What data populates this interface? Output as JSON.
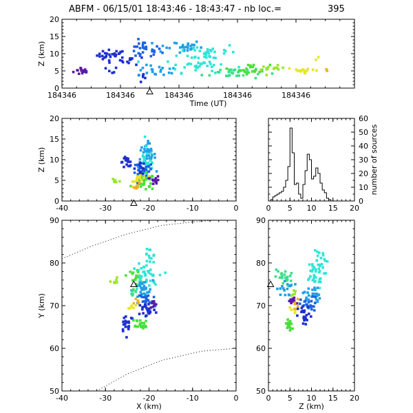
{
  "title": {
    "text": "ABFM - 06/15/01 18:43:46 - 18:43:47 - nb loc.=",
    "count": "395"
  },
  "colors": {
    "palette": [
      "#5a1aa6",
      "#1e2fd0",
      "#1e63e0",
      "#1ea0e6",
      "#2ee6d6",
      "#38e08a",
      "#48e03a",
      "#9ae62a",
      "#e6e62a",
      "#f0b020"
    ]
  },
  "chart_data": [
    {
      "id": "time-height",
      "type": "scatter",
      "xlabel": "Time (UT)",
      "ylabel": "Z (km)",
      "ylim": [
        0,
        20
      ],
      "xlim": [
        0,
        1
      ],
      "x_ticks": [
        {
          "v": 0.0,
          "label": "184346"
        },
        {
          "v": 0.2,
          "label": "184346"
        },
        {
          "v": 0.4,
          "label": "184346"
        },
        {
          "v": 0.6,
          "label": "184346"
        },
        {
          "v": 0.8,
          "label": "184346"
        }
      ],
      "y_ticks": [
        0,
        5,
        10,
        15,
        20
      ],
      "marker": {
        "x": 0.3,
        "y": -1,
        "shape": "triangle"
      },
      "clusters": [
        {
          "x": 0.07,
          "y": 5.0,
          "sx": 0.015,
          "sy": 0.6,
          "n": 14,
          "c": 0
        },
        {
          "x": 0.17,
          "y": 9.5,
          "sx": 0.025,
          "sy": 0.8,
          "n": 28,
          "c": 1
        },
        {
          "x": 0.24,
          "y": 8.0,
          "sx": 0.02,
          "sy": 0.6,
          "n": 10,
          "c": 1
        },
        {
          "x": 0.17,
          "y": 5.0,
          "sx": 0.01,
          "sy": 0.6,
          "n": 5,
          "c": 1
        },
        {
          "x": 0.27,
          "y": 3.0,
          "sx": 0.01,
          "sy": 0.8,
          "n": 6,
          "c": 1
        },
        {
          "x": 0.28,
          "y": 11.0,
          "sx": 0.03,
          "sy": 1.3,
          "n": 30,
          "c": 2
        },
        {
          "x": 0.33,
          "y": 5.0,
          "sx": 0.035,
          "sy": 0.8,
          "n": 20,
          "c": 3
        },
        {
          "x": 0.4,
          "y": 12.0,
          "sx": 0.04,
          "sy": 1.0,
          "n": 28,
          "c": 3
        },
        {
          "x": 0.5,
          "y": 10.5,
          "sx": 0.05,
          "sy": 1.3,
          "n": 32,
          "c": 4
        },
        {
          "x": 0.47,
          "y": 6.5,
          "sx": 0.06,
          "sy": 1.0,
          "n": 34,
          "c": 4
        },
        {
          "x": 0.58,
          "y": 4.5,
          "sx": 0.05,
          "sy": 1.0,
          "n": 26,
          "c": 5
        },
        {
          "x": 0.65,
          "y": 5.5,
          "sx": 0.03,
          "sy": 0.7,
          "n": 24,
          "c": 6
        },
        {
          "x": 0.72,
          "y": 5.5,
          "sx": 0.02,
          "sy": 0.5,
          "n": 12,
          "c": 7
        },
        {
          "x": 0.83,
          "y": 5.2,
          "sx": 0.03,
          "sy": 0.4,
          "n": 16,
          "c": 8
        },
        {
          "x": 0.87,
          "y": 9.0,
          "sx": 0.004,
          "sy": 0.3,
          "n": 2,
          "c": 8
        },
        {
          "x": 0.9,
          "y": 5.0,
          "sx": 0.004,
          "sy": 0.2,
          "n": 2,
          "c": 9
        }
      ]
    },
    {
      "id": "x-z",
      "type": "scatter",
      "xlabel": "",
      "ylabel": "Z (km)",
      "xlim": [
        -40,
        0
      ],
      "ylim": [
        0,
        20
      ],
      "x_ticks": [
        -40,
        -30,
        -20,
        -10,
        0
      ],
      "y_ticks": [
        0,
        5,
        10,
        15,
        20
      ],
      "marker": {
        "x": -23.5,
        "y": -0.5,
        "shape": "triangle"
      },
      "clusters": [
        {
          "x": -25.0,
          "y": 9.5,
          "sx": 0.8,
          "sy": 0.6,
          "n": 18,
          "c": 1
        },
        {
          "x": -20.5,
          "y": 11.0,
          "sx": 1.0,
          "sy": 1.5,
          "n": 40,
          "c": 3
        },
        {
          "x": -20.5,
          "y": 9.0,
          "sx": 1.0,
          "sy": 2.0,
          "n": 36,
          "c": 4
        },
        {
          "x": -21.5,
          "y": 6.5,
          "sx": 1.2,
          "sy": 1.5,
          "n": 30,
          "c": 2
        },
        {
          "x": -21.0,
          "y": 4.5,
          "sx": 1.2,
          "sy": 1.0,
          "n": 30,
          "c": 6
        },
        {
          "x": -22.0,
          "y": 5.5,
          "sx": 0.8,
          "sy": 0.8,
          "n": 14,
          "c": 8
        },
        {
          "x": -18.5,
          "y": 5.0,
          "sx": 0.5,
          "sy": 0.5,
          "n": 12,
          "c": 0
        },
        {
          "x": -27.5,
          "y": 5.0,
          "sx": 0.5,
          "sy": 0.3,
          "n": 6,
          "c": 7
        },
        {
          "x": -22.0,
          "y": 8.0,
          "sx": 0.6,
          "sy": 0.8,
          "n": 12,
          "c": 1
        },
        {
          "x": -22.5,
          "y": 3.5,
          "sx": 0.5,
          "sy": 0.4,
          "n": 8,
          "c": 9
        }
      ]
    },
    {
      "id": "histogram",
      "type": "bar",
      "xlabel": "",
      "ylabel": "number of sources",
      "xlim": [
        0,
        20
      ],
      "ylim": [
        0,
        60
      ],
      "x_ticks": [
        0,
        5,
        10,
        15,
        20
      ],
      "y_ticks": [
        0,
        10,
        20,
        30,
        40,
        50,
        60
      ],
      "bin_width": 0.5,
      "bin_start": 0,
      "values": [
        0,
        1,
        3,
        4,
        5,
        6,
        7,
        10,
        15,
        25,
        53,
        35,
        12,
        13,
        5,
        2,
        12,
        22,
        34,
        30,
        16,
        18,
        24,
        20,
        13,
        8,
        6,
        2,
        1,
        0,
        0,
        0,
        0,
        0,
        0,
        0,
        0,
        0,
        0,
        0
      ]
    },
    {
      "id": "x-y",
      "type": "scatter",
      "xlabel": "X (km)",
      "ylabel": "Y (km)",
      "xlim": [
        -40,
        0
      ],
      "ylim": [
        50,
        90
      ],
      "x_ticks": [
        -40,
        -30,
        -20,
        -10,
        0
      ],
      "y_ticks": [
        50,
        60,
        70,
        80,
        90
      ],
      "marker": {
        "x": -23.5,
        "y": 75,
        "shape": "triangle"
      },
      "clusters": [
        {
          "x": -20.0,
          "y": 81.0,
          "sx": 0.8,
          "sy": 1.5,
          "n": 18,
          "c": 4
        },
        {
          "x": -23.0,
          "y": 77.0,
          "sx": 1.0,
          "sy": 0.8,
          "n": 20,
          "c": 6
        },
        {
          "x": -21.0,
          "y": 76.5,
          "sx": 1.5,
          "sy": 1.5,
          "n": 34,
          "c": 4
        },
        {
          "x": -21.5,
          "y": 73.5,
          "sx": 1.2,
          "sy": 1.2,
          "n": 28,
          "c": 3
        },
        {
          "x": -20.5,
          "y": 71.0,
          "sx": 1.0,
          "sy": 1.2,
          "n": 26,
          "c": 2
        },
        {
          "x": -20.5,
          "y": 69.0,
          "sx": 1.0,
          "sy": 1.0,
          "n": 22,
          "c": 1
        },
        {
          "x": -19.0,
          "y": 70.5,
          "sx": 0.4,
          "sy": 0.6,
          "n": 8,
          "c": 0
        },
        {
          "x": -25.0,
          "y": 66.0,
          "sx": 0.8,
          "sy": 1.2,
          "n": 22,
          "c": 1
        },
        {
          "x": -21.5,
          "y": 65.0,
          "sx": 0.6,
          "sy": 0.5,
          "n": 16,
          "c": 6
        },
        {
          "x": -28.0,
          "y": 76.0,
          "sx": 0.4,
          "sy": 0.6,
          "n": 6,
          "c": 7
        },
        {
          "x": -23.5,
          "y": 73.0,
          "sx": 0.5,
          "sy": 0.5,
          "n": 6,
          "c": 5
        },
        {
          "x": -24.0,
          "y": 70.0,
          "sx": 0.4,
          "sy": 0.4,
          "n": 6,
          "c": 8
        },
        {
          "x": -22.5,
          "y": 71.0,
          "sx": 0.4,
          "sy": 0.4,
          "n": 5,
          "c": 9
        },
        {
          "x": -22.0,
          "y": 66.0,
          "sx": 0.6,
          "sy": 0.5,
          "n": 8,
          "c": 6
        }
      ],
      "dotted_curves": [
        {
          "points": [
            [
              -40,
              81
            ],
            [
              -33,
              84
            ],
            [
              -25,
              86.8
            ],
            [
              -17,
              88.8
            ],
            [
              -10,
              89.6
            ],
            [
              -5,
              90
            ]
          ]
        },
        {
          "points": [
            [
              -32,
              50
            ],
            [
              -25,
              54
            ],
            [
              -17,
              57.2
            ],
            [
              -8,
              59.3
            ],
            [
              0,
              60
            ]
          ]
        }
      ]
    },
    {
      "id": "z-y",
      "type": "scatter",
      "xlabel": "Z (km)",
      "ylabel": "",
      "xlim": [
        0,
        20
      ],
      "ylim": [
        50,
        90
      ],
      "x_ticks": [
        0,
        5,
        10,
        15,
        20
      ],
      "y_ticks": [
        50,
        60,
        70,
        80,
        90
      ],
      "marker": {
        "x": 0.5,
        "y": 75,
        "shape": "triangle"
      },
      "clusters": [
        {
          "x": 11.5,
          "y": 81.0,
          "sx": 1.2,
          "sy": 1.5,
          "n": 20,
          "c": 4
        },
        {
          "x": 10.5,
          "y": 77.0,
          "sx": 1.2,
          "sy": 1.5,
          "n": 30,
          "c": 4
        },
        {
          "x": 3.5,
          "y": 76.5,
          "sx": 1.0,
          "sy": 1.0,
          "n": 22,
          "c": 5
        },
        {
          "x": 4.0,
          "y": 74.0,
          "sx": 1.0,
          "sy": 1.0,
          "n": 16,
          "c": 3
        },
        {
          "x": 10.0,
          "y": 72.5,
          "sx": 1.0,
          "sy": 1.2,
          "n": 28,
          "c": 3
        },
        {
          "x": 9.5,
          "y": 70.0,
          "sx": 1.0,
          "sy": 1.0,
          "n": 24,
          "c": 2
        },
        {
          "x": 8.5,
          "y": 67.5,
          "sx": 0.8,
          "sy": 1.2,
          "n": 22,
          "c": 1
        },
        {
          "x": 5.5,
          "y": 71.0,
          "sx": 0.5,
          "sy": 0.5,
          "n": 10,
          "c": 0
        },
        {
          "x": 5.0,
          "y": 65.5,
          "sx": 0.6,
          "sy": 0.8,
          "n": 18,
          "c": 6
        },
        {
          "x": 5.5,
          "y": 69.0,
          "sx": 0.5,
          "sy": 0.5,
          "n": 6,
          "c": 8
        },
        {
          "x": 6.5,
          "y": 73.0,
          "sx": 0.5,
          "sy": 0.5,
          "n": 5,
          "c": 7
        },
        {
          "x": 6.0,
          "y": 70.5,
          "sx": 0.5,
          "sy": 0.5,
          "n": 5,
          "c": 9
        }
      ]
    }
  ]
}
